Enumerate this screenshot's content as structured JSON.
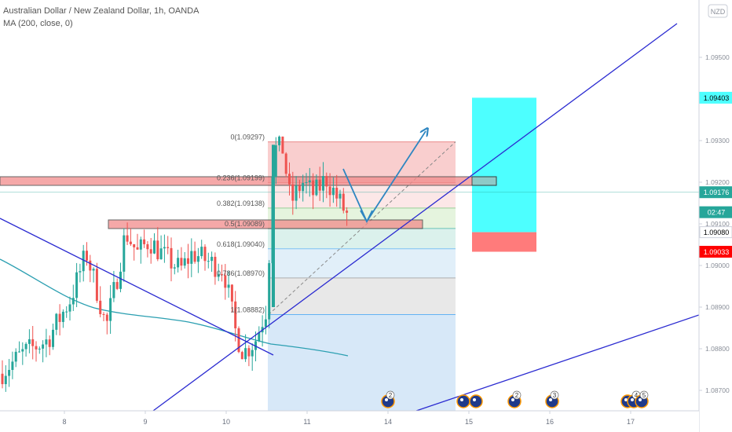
{
  "header": {
    "title": "Australian Dollar / New Zealand Dollar, 1h, OANDA",
    "indicator": "MA (200, close, 0)",
    "currency_badge": "NZD"
  },
  "price_axis": {
    "ticks": [
      "1.09500",
      "1.09400",
      "1.09300",
      "1.09200",
      "1.09100",
      "1.09000",
      "1.08900",
      "1.08800",
      "1.08700"
    ],
    "tick_values": [
      1.095,
      1.094,
      1.093,
      1.092,
      1.091,
      1.09,
      1.089,
      1.088,
      1.087
    ],
    "labels": [
      {
        "text": "1.09403",
        "value": 1.09403,
        "bg": "#4dffff",
        "fg": "#000000"
      },
      {
        "text": "1.09176",
        "value": 1.09176,
        "bg": "#26a69a",
        "fg": "#ffffff"
      },
      {
        "text": "02:47",
        "value": 1.09128,
        "bg": "#26a69a",
        "fg": "#ffffff"
      },
      {
        "text": "1.09080",
        "value": 1.0908,
        "bg": "#ffffff",
        "fg": "#000000"
      },
      {
        "text": "1.09033",
        "value": 1.09033,
        "bg": "#ff0000",
        "fg": "#ffffff"
      }
    ]
  },
  "time_axis": {
    "labels": [
      "8",
      "9",
      "10",
      "11",
      "14",
      "15",
      "16",
      "17"
    ]
  },
  "chart_data": {
    "type": "candlestick",
    "title": "Australian Dollar / New Zealand Dollar, 1h, OANDA",
    "ylim": [
      1.0863,
      1.0966
    ],
    "x_categories": [
      "8",
      "9",
      "10",
      "11",
      "14",
      "15",
      "16",
      "17"
    ],
    "fibonacci": [
      {
        "label": "0(1.09297)",
        "value": 1.09297
      },
      {
        "label": "0.236(1.09199)",
        "value": 1.09199
      },
      {
        "label": "0.382(1.09138)",
        "value": 1.09138
      },
      {
        "label": "0.5(1.09089)",
        "value": 1.09089
      },
      {
        "label": "0.618(1.09040)",
        "value": 1.0904
      },
      {
        "label": "0.786(1.08970)",
        "value": 1.0897
      },
      {
        "label": "1(1.08882)",
        "value": 1.08882
      }
    ],
    "position": {
      "entry": 1.0908,
      "target": 1.09403,
      "stop": 1.09033
    },
    "current_price": 1.09176,
    "events": [
      {
        "label": "2",
        "x": 494
      },
      {
        "label": "",
        "x": 590
      },
      {
        "label": "",
        "x": 606
      },
      {
        "label": "2",
        "x": 655
      },
      {
        "label": "3",
        "x": 703
      },
      {
        "label": "",
        "x": 799
      },
      {
        "label": "4",
        "x": 807
      },
      {
        "label": "5",
        "x": 817
      }
    ]
  },
  "colors": {
    "up": "#26a69a",
    "down": "#ef5350",
    "ma": "#2b9fb1",
    "trend": "#2b2bd1",
    "arrow": "#2e86c1",
    "fib_0": "#f8c6c6",
    "fib_1": "#fbe3e3",
    "fib_2": "#e0f2d8",
    "fib_3": "#d5efe9",
    "fib_4": "#dcecf8",
    "fib_5": "#e4e4e4",
    "fib_6": "#d3e6f7",
    "target": "#4dffff",
    "stop": "#ff7b7b"
  }
}
